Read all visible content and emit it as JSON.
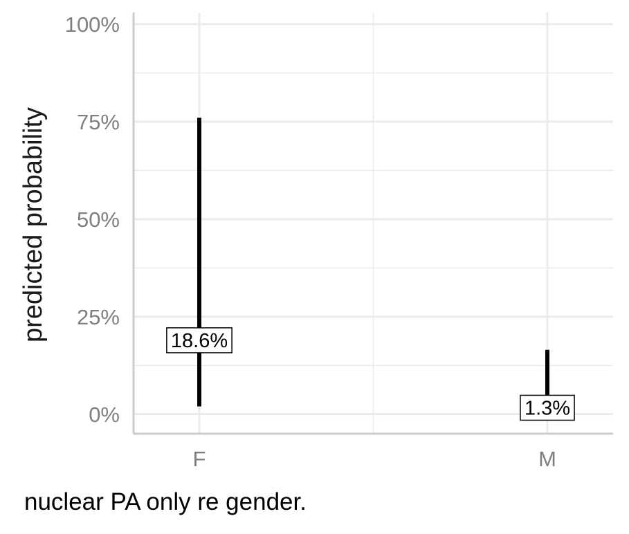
{
  "chart_data": {
    "type": "interval",
    "categories": [
      "F",
      "M"
    ],
    "series": [
      {
        "values": [
          0.186,
          0.013
        ],
        "lower": [
          0.02,
          0.005
        ],
        "upper": [
          0.76,
          0.165
        ],
        "labels": [
          "18.6%",
          "1.3%"
        ]
      }
    ],
    "ylabel": "predicted probability",
    "xlabel": "",
    "caption": "nuclear PA only re gender.",
    "ylim": [
      -0.05,
      1.03
    ],
    "yticks": [
      0,
      0.25,
      0.5,
      0.75,
      1.0
    ],
    "ytick_labels": [
      "0%",
      "25%",
      "50%",
      "75%",
      "100%"
    ],
    "grid": true,
    "colors": {
      "interval": "#000000",
      "grid": "#ebebeb",
      "axis_line": "#cccccc",
      "tick_text": "#7f7f7f",
      "label_box_border": "#000000",
      "label_box_fill": "#ffffff"
    }
  }
}
